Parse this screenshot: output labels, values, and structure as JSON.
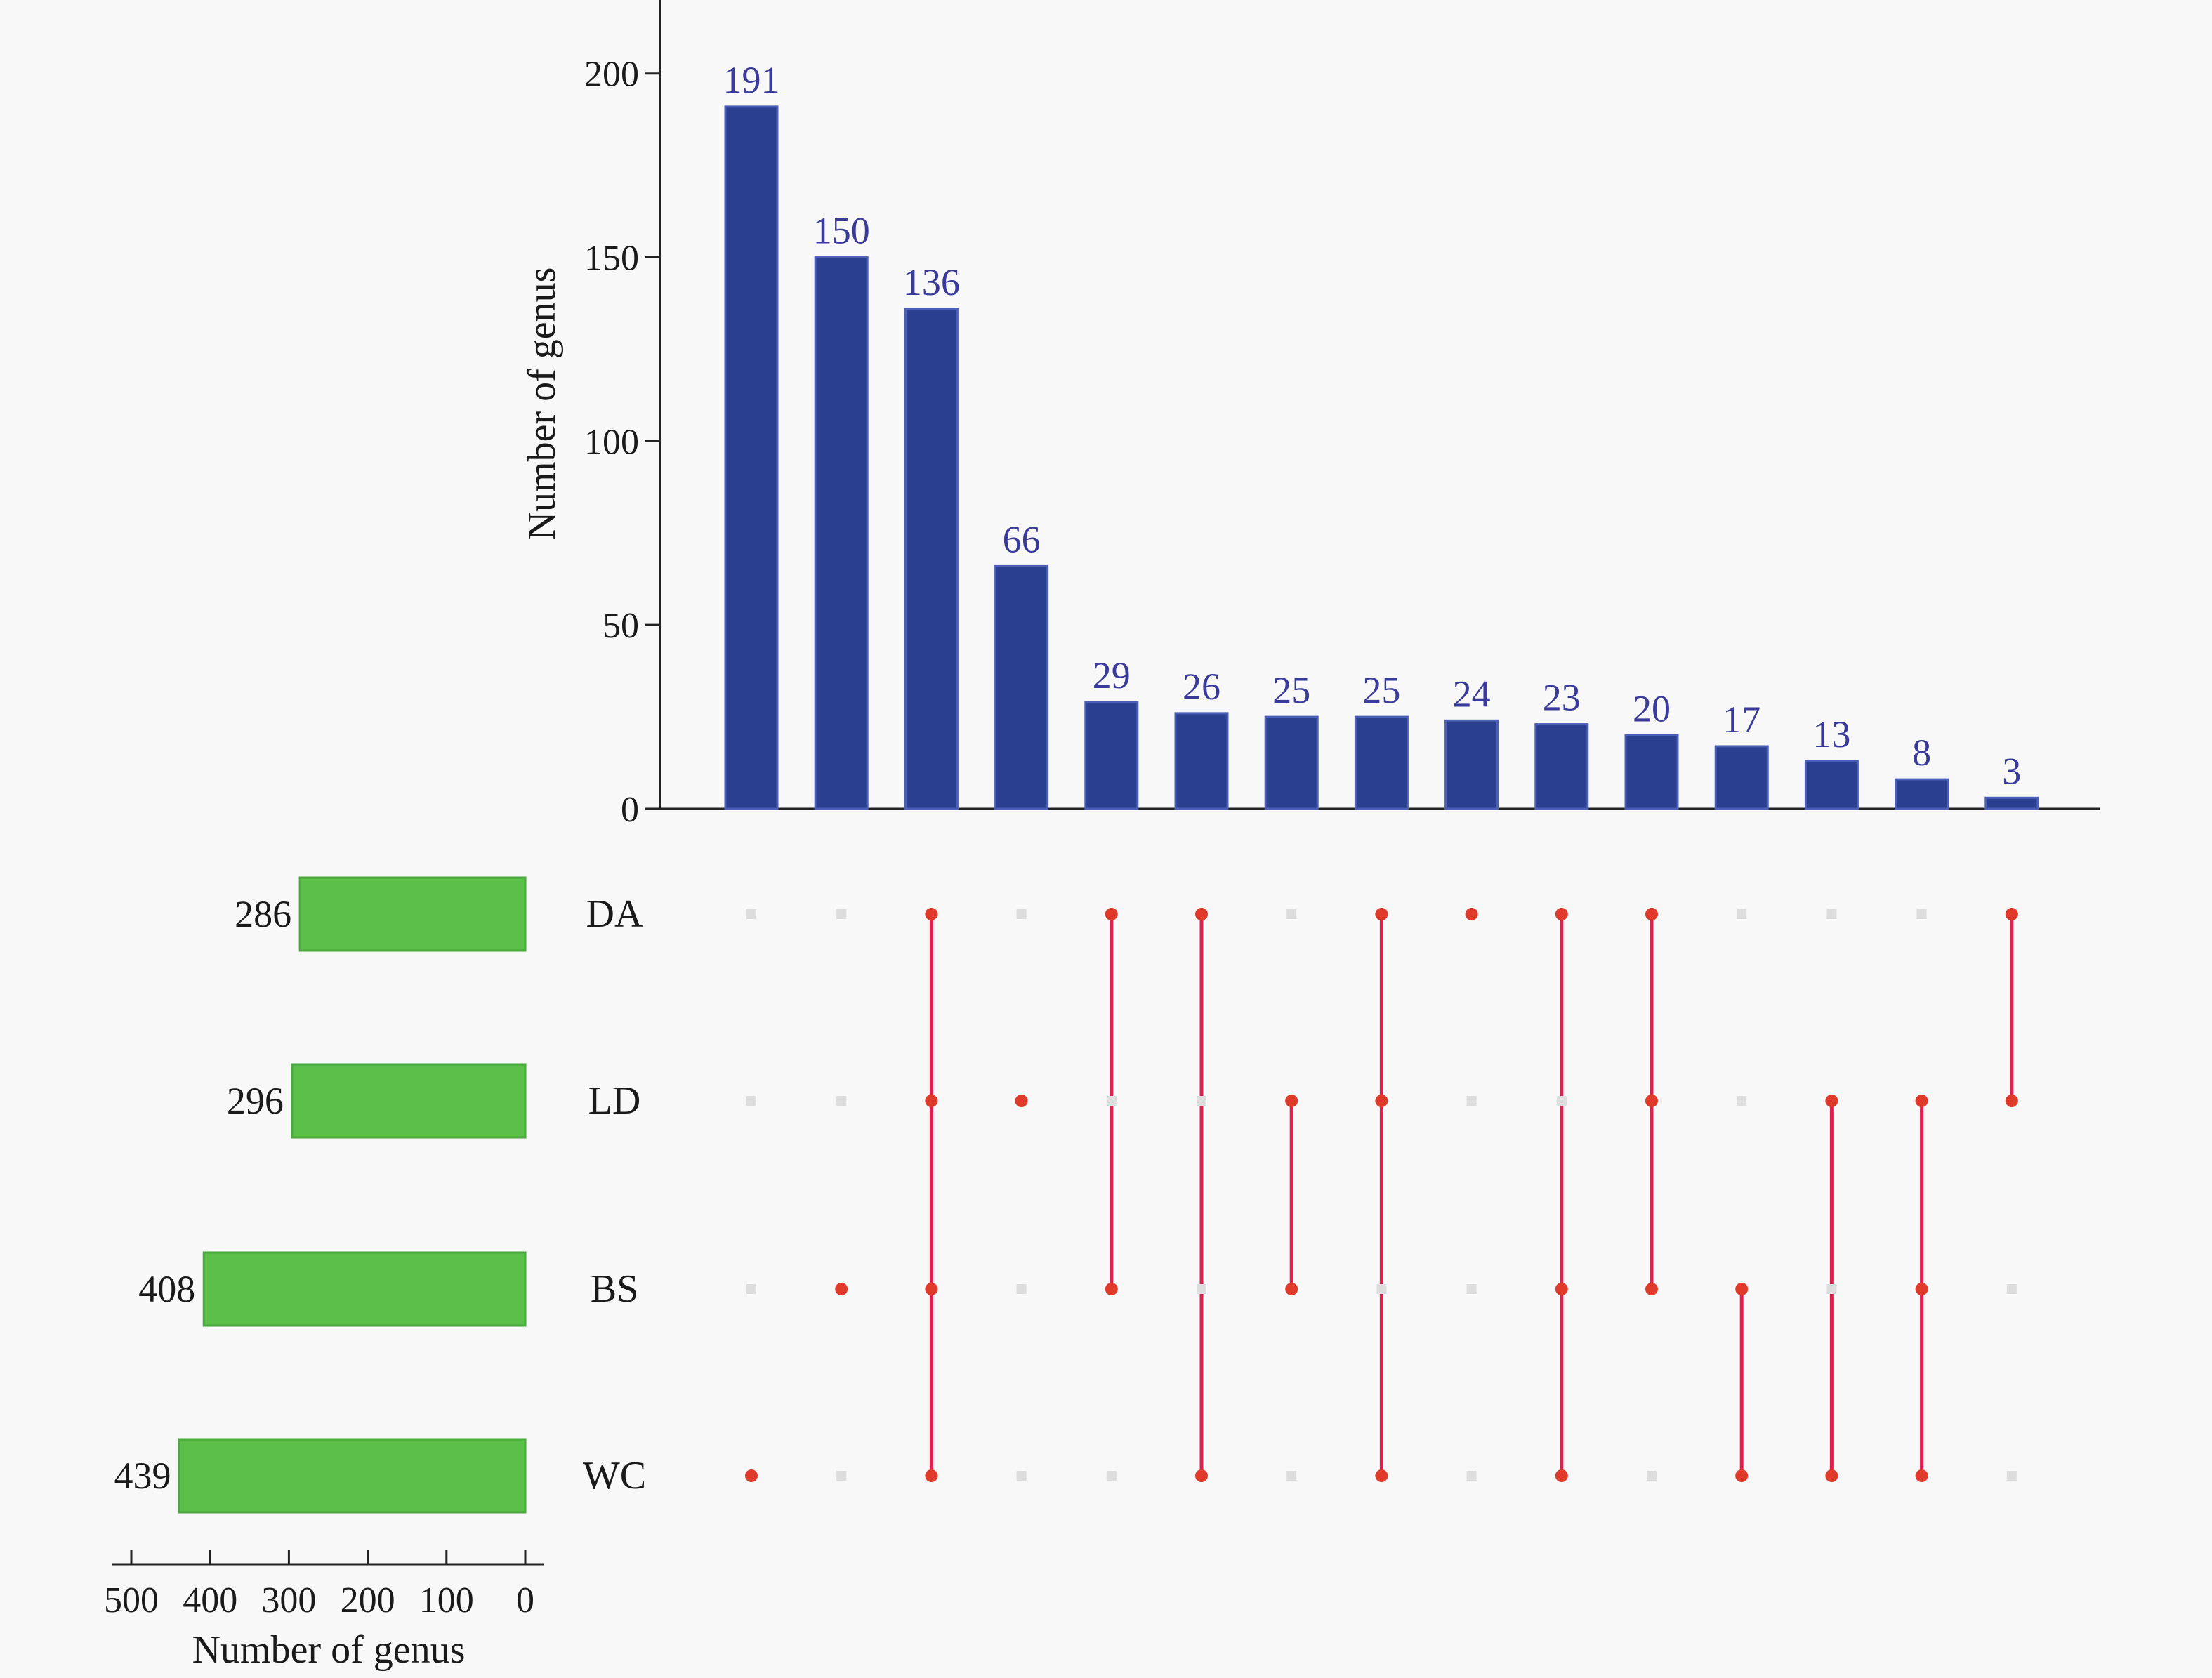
{
  "colors": {
    "bar": "#2a3f8f",
    "bar_label": "#3a3a9a",
    "set_bar": "#5cbf4a",
    "set_bar_edge": "#4aa83c",
    "connector": "#e0204f",
    "dot_active": "#e03a2a",
    "dot_inactive": "#dddddd",
    "axis": "#222222"
  },
  "chart_data": {
    "type": "bar",
    "subtype": "upset",
    "ylabel": "Number of genus",
    "ylim": [
      0,
      220
    ],
    "yticks": [
      0,
      50,
      100,
      150,
      200
    ],
    "values": [
      191,
      150,
      136,
      66,
      29,
      26,
      25,
      25,
      24,
      23,
      20,
      17,
      13,
      8,
      3
    ],
    "value_labels": [
      "191",
      "150",
      "136",
      "66",
      "29",
      "26",
      "25",
      "25",
      "24",
      "23",
      "20",
      "17",
      "13",
      "8",
      "3"
    ],
    "sets": [
      "DA",
      "LD",
      "BS",
      "WC"
    ],
    "set_sizes": [
      286,
      296,
      408,
      439
    ],
    "set_size_labels": [
      "286",
      "296",
      "408",
      "439"
    ],
    "set_xlabel": "Number of genus",
    "set_xlim": [
      0,
      500
    ],
    "set_xticks": [
      500,
      400,
      300,
      200,
      100,
      0
    ],
    "intersections": [
      [
        "WC"
      ],
      [
        "BS"
      ],
      [
        "DA",
        "LD",
        "BS",
        "WC"
      ],
      [
        "LD"
      ],
      [
        "DA",
        "BS"
      ],
      [
        "DA",
        "WC"
      ],
      [
        "LD",
        "BS"
      ],
      [
        "DA",
        "LD",
        "WC"
      ],
      [
        "DA"
      ],
      [
        "DA",
        "BS",
        "WC"
      ],
      [
        "DA",
        "LD",
        "BS"
      ],
      [
        "BS",
        "WC"
      ],
      [
        "LD",
        "WC"
      ],
      [
        "LD",
        "BS",
        "WC"
      ],
      [
        "DA",
        "LD"
      ]
    ]
  }
}
